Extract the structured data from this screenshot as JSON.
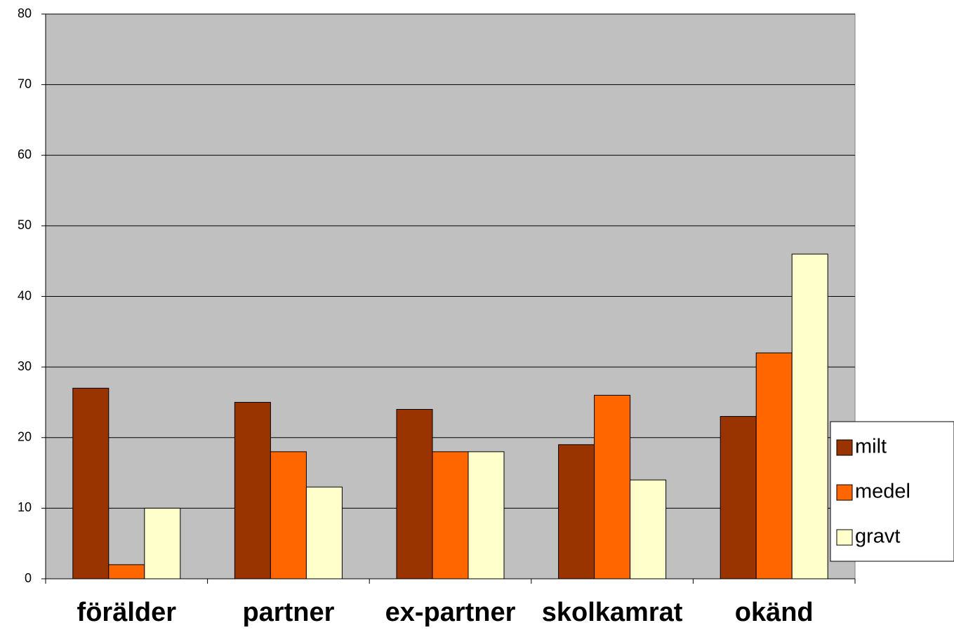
{
  "chart_data": {
    "type": "bar",
    "categories": [
      "förälder",
      "partner",
      "ex-partner",
      "skolkamrat",
      "okänd"
    ],
    "series": [
      {
        "name": "milt",
        "color": "#993300",
        "values": [
          27,
          25,
          24,
          19,
          23
        ]
      },
      {
        "name": "medel",
        "color": "#ff6600",
        "values": [
          2,
          18,
          18,
          26,
          32
        ]
      },
      {
        "name": "gravt",
        "color": "#ffffcc",
        "values": [
          10,
          13,
          18,
          14,
          46
        ]
      }
    ],
    "ylim": [
      0,
      80
    ],
    "yticks": [
      0,
      10,
      20,
      30,
      40,
      50,
      60,
      70,
      80
    ],
    "grid": true,
    "legend": "right"
  }
}
